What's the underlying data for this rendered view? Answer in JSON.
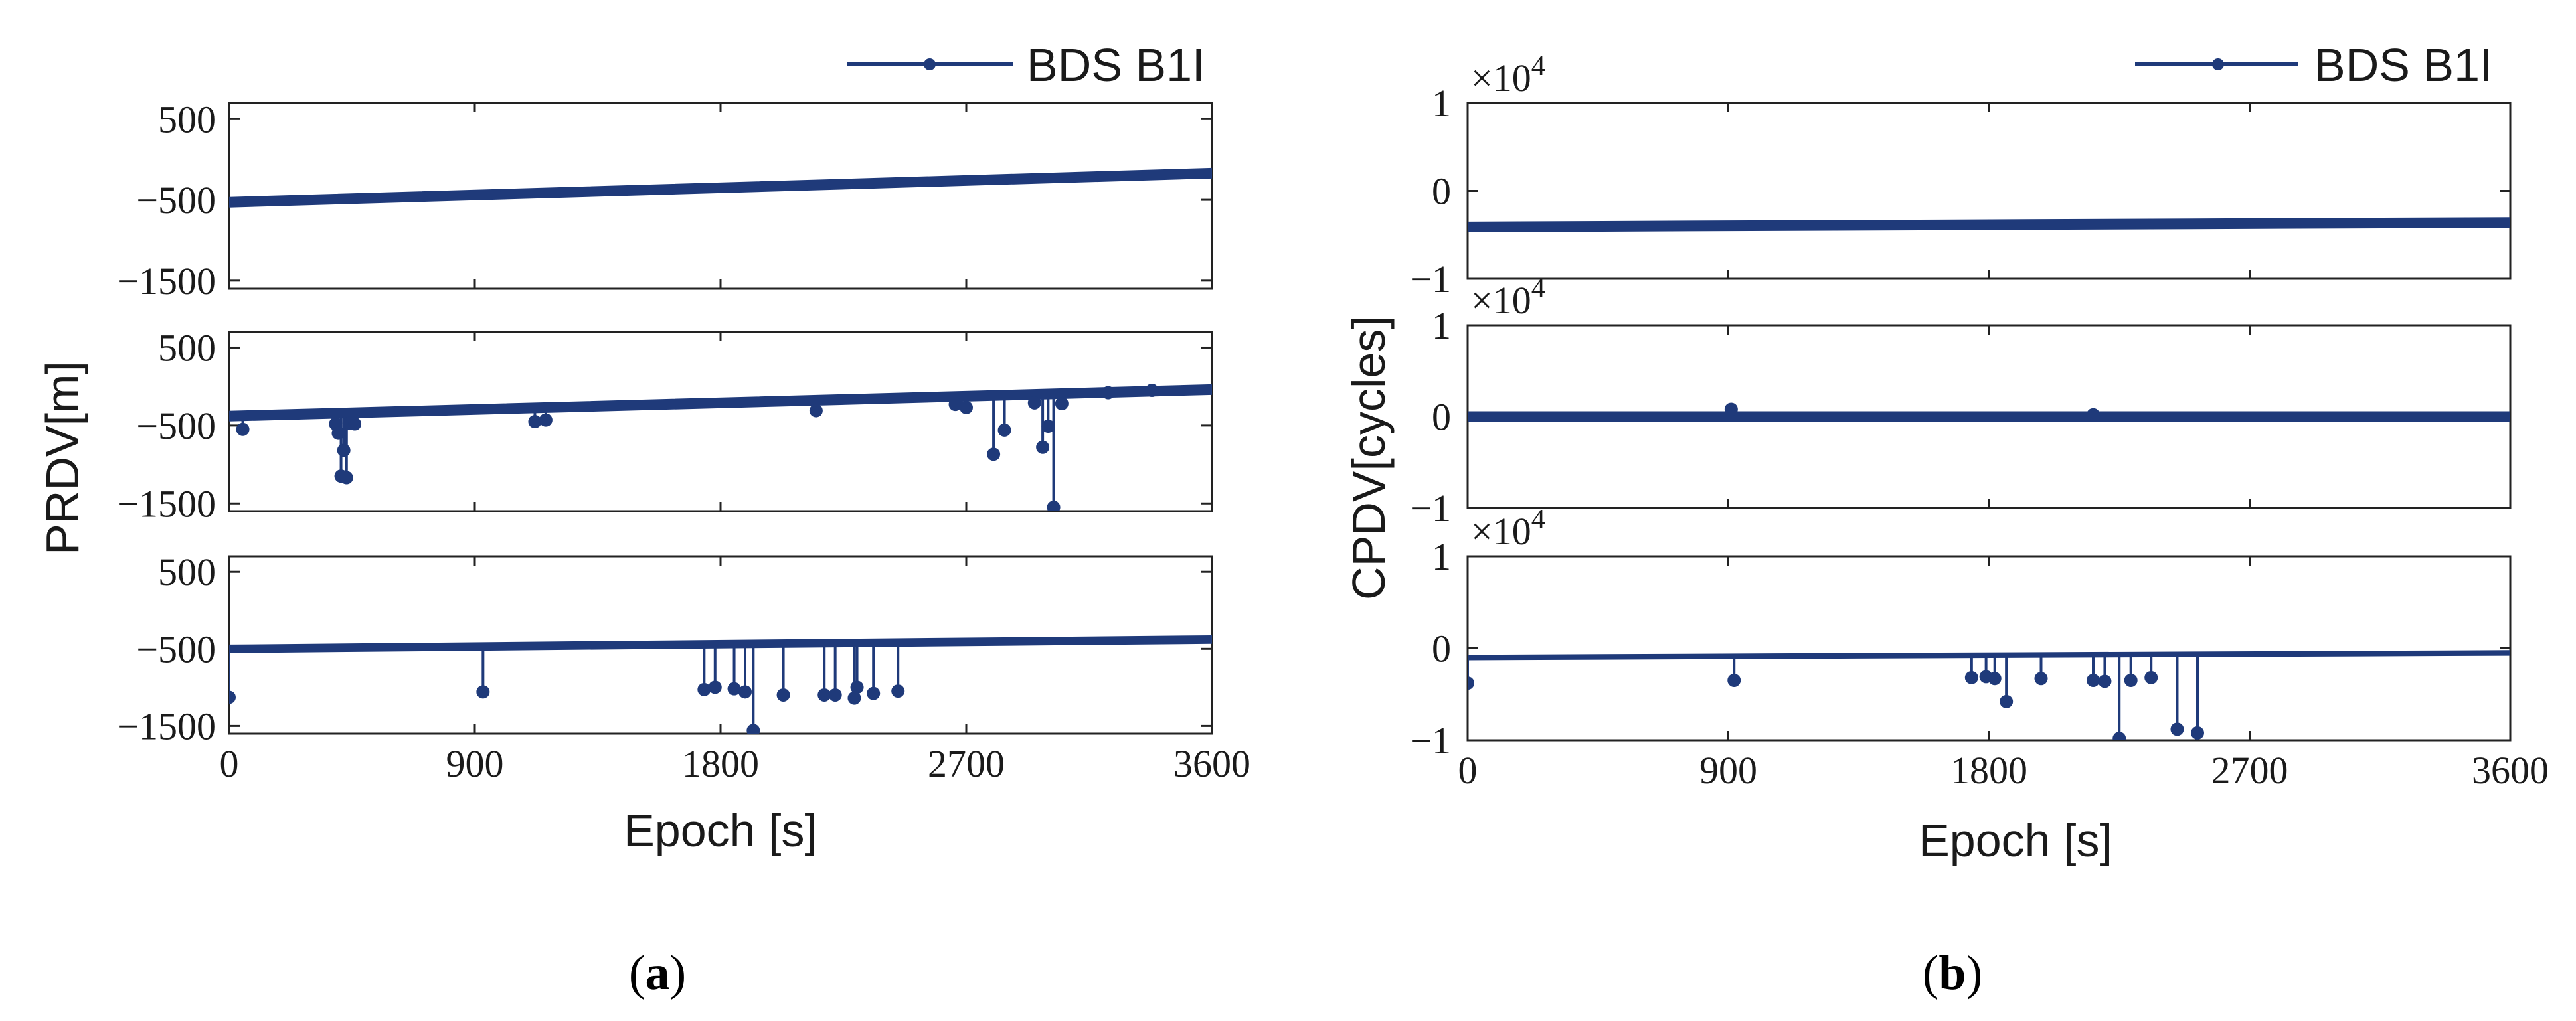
{
  "colors": {
    "series": "#1f3a7a",
    "axis": "#222222"
  },
  "legend_label": "BDS B1I",
  "sublabels": [
    {
      "open": "(",
      "letter": "a",
      "close": ")"
    },
    {
      "open": "(",
      "letter": "b",
      "close": ")"
    }
  ],
  "chart_data": [
    {
      "type": "line",
      "panel": "a",
      "ylabel": "PRDV[m]",
      "xlabel": "Epoch [s]",
      "x_ticks": [
        "0",
        "900",
        "1800",
        "2700",
        "3600"
      ],
      "xlim": [
        0,
        3600
      ],
      "legend": {
        "entries": [
          "BDS B1I"
        ],
        "placement": "top-right"
      },
      "subplots": [
        {
          "ylim": [
            -1600,
            700
          ],
          "y_ticks": [
            500,
            -500,
            -1500
          ],
          "y_tick_labels": [
            "500",
            "−500",
            "−1500"
          ],
          "series": {
            "x": [
              0,
              3600
            ],
            "y": [
              -530,
              -170
            ]
          },
          "outliers": []
        },
        {
          "ylim": [
            -1600,
            700
          ],
          "y_ticks": [
            500,
            -500,
            -1500
          ],
          "y_tick_labels": [
            "500",
            "−500",
            "−1500"
          ],
          "series": {
            "x": [
              0,
              3600
            ],
            "y": [
              -380,
              -40
            ]
          },
          "outliers": [
            [
              50,
              -550
            ],
            [
              390,
              -480
            ],
            [
              400,
              -600
            ],
            [
              410,
              -1150
            ],
            [
              420,
              -820
            ],
            [
              430,
              -1170
            ],
            [
              440,
              -470
            ],
            [
              460,
              -480
            ],
            [
              1120,
              -450
            ],
            [
              1160,
              -430
            ],
            [
              2150,
              -310
            ],
            [
              2660,
              -230
            ],
            [
              2700,
              -270
            ],
            [
              2800,
              -870
            ],
            [
              2840,
              -560
            ],
            [
              2950,
              -210
            ],
            [
              2980,
              -780
            ],
            [
              3000,
              -510
            ],
            [
              3020,
              -1550
            ],
            [
              3050,
              -220
            ],
            [
              3220,
              -80
            ],
            [
              3380,
              -50
            ]
          ]
        },
        {
          "ylim": [
            -1600,
            700
          ],
          "y_ticks": [
            500,
            -500,
            -1500
          ],
          "y_tick_labels": [
            "500",
            "−500",
            "−1500"
          ],
          "series": {
            "x": [
              0,
              3600
            ],
            "y": [
              -500,
              -380
            ]
          },
          "band": 110,
          "outliers": [
            [
              0,
              -1130
            ],
            [
              930,
              -1060
            ],
            [
              1740,
              -1030
            ],
            [
              1780,
              -1000
            ],
            [
              1850,
              -1020
            ],
            [
              1890,
              -1060
            ],
            [
              1920,
              -1560
            ],
            [
              2030,
              -1100
            ],
            [
              2180,
              -1100
            ],
            [
              2220,
              -1100
            ],
            [
              2290,
              -1140
            ],
            [
              2300,
              -1000
            ],
            [
              2360,
              -1080
            ],
            [
              2450,
              -1050
            ]
          ]
        }
      ]
    },
    {
      "type": "line",
      "panel": "b",
      "ylabel": "CPDV[cycles]",
      "xlabel": "Epoch [s]",
      "x_ticks": [
        "0",
        "900",
        "1800",
        "2700",
        "3600"
      ],
      "xlim": [
        0,
        3600
      ],
      "legend": {
        "entries": [
          "BDS B1I"
        ],
        "placement": "top-right"
      },
      "y_scale_label": {
        "base": "×10",
        "exponent": "4"
      },
      "subplots": [
        {
          "ylim": [
            -1,
            1
          ],
          "y_ticks": [
            1,
            0,
            -1
          ],
          "y_tick_labels": [
            "1",
            "0",
            "−1"
          ],
          "series": {
            "x": [
              0,
              3600
            ],
            "y": [
              -0.41,
              -0.36
            ]
          },
          "outliers": []
        },
        {
          "ylim": [
            -1,
            1
          ],
          "y_ticks": [
            1,
            0,
            -1
          ],
          "y_tick_labels": [
            "1",
            "0",
            "−1"
          ],
          "series": {
            "x": [
              0,
              3600
            ],
            "y": [
              0,
              0
            ]
          },
          "outliers": [
            [
              910,
              0.08
            ],
            [
              2160,
              0.02
            ]
          ]
        },
        {
          "ylim": [
            -1,
            1
          ],
          "y_ticks": [
            1,
            0,
            -1
          ],
          "y_tick_labels": [
            "1",
            "0",
            "−1"
          ],
          "series": {
            "x": [
              0,
              3600
            ],
            "y": [
              -0.1,
              -0.05
            ]
          },
          "band": 0.06,
          "outliers": [
            [
              0,
              -0.38
            ],
            [
              920,
              -0.35
            ],
            [
              1740,
              -0.32
            ],
            [
              1790,
              -0.31
            ],
            [
              1820,
              -0.33
            ],
            [
              1860,
              -0.58
            ],
            [
              1980,
              -0.33
            ],
            [
              2160,
              -0.35
            ],
            [
              2200,
              -0.36
            ],
            [
              2250,
              -0.98
            ],
            [
              2290,
              -0.35
            ],
            [
              2360,
              -0.32
            ],
            [
              2450,
              -0.88
            ],
            [
              2520,
              -0.92
            ]
          ]
        }
      ]
    }
  ]
}
